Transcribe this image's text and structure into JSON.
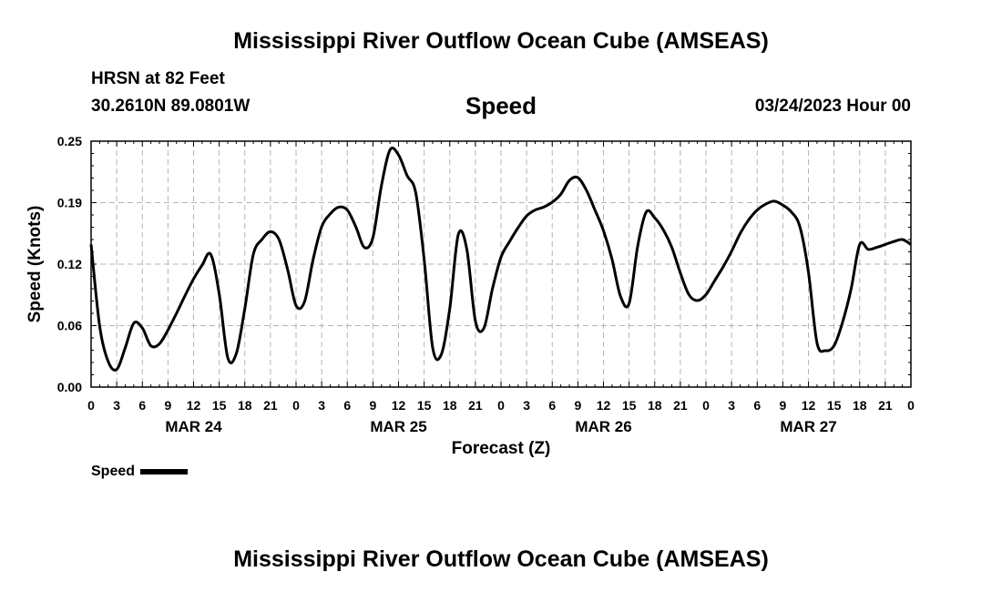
{
  "header": {
    "title": "Mississippi River Outflow Ocean Cube (AMSEAS)",
    "station": "HRSN at 82 Feet",
    "coordinates": "30.2610N  89.0801W",
    "variable": "Speed",
    "datetime": "03/24/2023 Hour 00"
  },
  "footer": {
    "title": "Mississippi River Outflow Ocean Cube (AMSEAS)"
  },
  "legend": {
    "label": "Speed",
    "color": "#000000"
  },
  "chart_data": {
    "type": "line",
    "title": "Speed",
    "xlabel": "Forecast (Z)",
    "ylabel": "Speed (Knots)",
    "xlim": [
      0,
      96
    ],
    "ylim": [
      0,
      0.25
    ],
    "yticks": [
      "0.00",
      "0.06",
      "0.12",
      "0.19",
      "0.25"
    ],
    "ytick_values": [
      0,
      0.0625,
      0.125,
      0.1875,
      0.25
    ],
    "xticks": [
      "0",
      "3",
      "6",
      "9",
      "12",
      "15",
      "18",
      "21",
      "0",
      "3",
      "6",
      "9",
      "12",
      "15",
      "18",
      "21",
      "0",
      "3",
      "6",
      "9",
      "12",
      "15",
      "18",
      "21",
      "0",
      "3",
      "6",
      "9",
      "12",
      "15",
      "18",
      "21",
      "0"
    ],
    "day_labels": [
      {
        "label": "MAR 24",
        "hour": 12
      },
      {
        "label": "MAR 25",
        "hour": 36
      },
      {
        "label": "MAR 26",
        "hour": 60
      },
      {
        "label": "MAR 27",
        "hour": 84
      }
    ],
    "grid": true,
    "series": [
      {
        "name": "Speed",
        "color": "#000000",
        "x": [
          0,
          1,
          2,
          3,
          4,
          5,
          6,
          7,
          8,
          9,
          10,
          11,
          12,
          13,
          14,
          15,
          16,
          17,
          18,
          19,
          20,
          21,
          22,
          23,
          24,
          25,
          26,
          27,
          28,
          29,
          30,
          31,
          32,
          33,
          34,
          35,
          36,
          37,
          38,
          39,
          40,
          41,
          42,
          43,
          44,
          45,
          46,
          47,
          48,
          49,
          50,
          51,
          52,
          53,
          54,
          55,
          56,
          57,
          58,
          59,
          60,
          61,
          62,
          63,
          64,
          65,
          66,
          67,
          68,
          69,
          70,
          71,
          72,
          73,
          74,
          75,
          76,
          77,
          78,
          79,
          80,
          81,
          82,
          83,
          84,
          85,
          86,
          87,
          88,
          89,
          90,
          91,
          92,
          93,
          94,
          95,
          96
        ],
        "values": [
          0.145,
          0.062,
          0.026,
          0.018,
          0.04,
          0.065,
          0.06,
          0.042,
          0.044,
          0.058,
          0.075,
          0.093,
          0.11,
          0.124,
          0.135,
          0.095,
          0.03,
          0.034,
          0.08,
          0.135,
          0.15,
          0.158,
          0.15,
          0.12,
          0.083,
          0.087,
          0.13,
          0.163,
          0.176,
          0.183,
          0.18,
          0.163,
          0.142,
          0.152,
          0.205,
          0.241,
          0.236,
          0.215,
          0.198,
          0.13,
          0.04,
          0.033,
          0.08,
          0.155,
          0.14,
          0.067,
          0.06,
          0.1,
          0.132,
          0.148,
          0.162,
          0.174,
          0.18,
          0.183,
          0.188,
          0.196,
          0.21,
          0.213,
          0.2,
          0.18,
          0.159,
          0.13,
          0.092,
          0.085,
          0.143,
          0.178,
          0.172,
          0.16,
          0.142,
          0.116,
          0.094,
          0.088,
          0.094,
          0.108,
          0.122,
          0.138,
          0.156,
          0.17,
          0.18,
          0.186,
          0.189,
          0.185,
          0.178,
          0.163,
          0.117,
          0.045,
          0.037,
          0.042,
          0.066,
          0.1,
          0.145,
          0.14,
          0.142,
          0.145,
          0.148,
          0.15,
          0.145
        ]
      }
    ]
  }
}
